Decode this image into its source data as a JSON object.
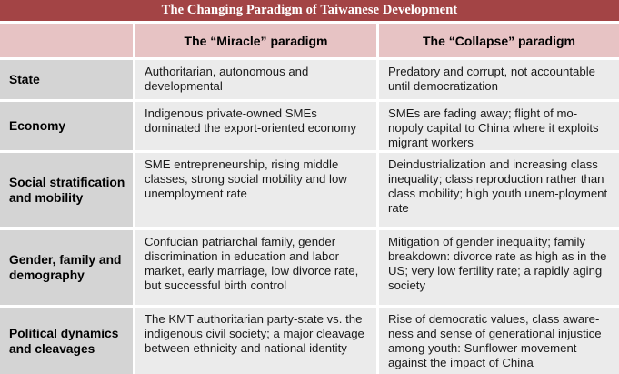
{
  "title": "The Changing Paradigm of Taiwanese Development",
  "colors": {
    "title_bar": "#a34445",
    "header_band": "#e7c3c4",
    "row_header": "#d4d4d4",
    "cell": "#ebebeb"
  },
  "columns": {
    "corner": "",
    "miracle": "The “Miracle” paradigm",
    "collapse": "The “Collapse” paradigm"
  },
  "rows": [
    {
      "label": "State",
      "miracle": "Authoritarian, autonomous and developmental",
      "collapse": "Predatory and corrupt, not accountable until democratization"
    },
    {
      "label": "Economy",
      "miracle": "Indigenous private-owned SMEs dominated the export-oriented economy",
      "collapse": "SMEs are fading away; flight of mo-nopoly capital to China where it exploits migrant workers"
    },
    {
      "label": "Social stratification and mobility",
      "miracle": "SME entrepreneurship, rising middle classes, strong social mobility and low unemployment rate",
      "collapse": "Deindustrialization and increasing class inequality; class reproduction rather than class mobility; high youth unem-ployment rate"
    },
    {
      "label": "Gender, family and demography",
      "miracle": "Confucian patriarchal family, gender discrimination in education and labor market, early marriage, low divorce rate, but successful birth control",
      "collapse": "Mitigation of gender inequality; family breakdown: divorce rate as high as in the US; very low fertility rate; a rapidly aging society"
    },
    {
      "label": "Political dynamics and cleavages",
      "miracle": "The KMT authoritarian party-state vs. the indigenous civil society; a major cleavage between ethnicity and national identity",
      "collapse": "Rise of democratic values, class aware-ness and sense of generational injustice among youth: Sunflower movement against the impact of China"
    }
  ]
}
